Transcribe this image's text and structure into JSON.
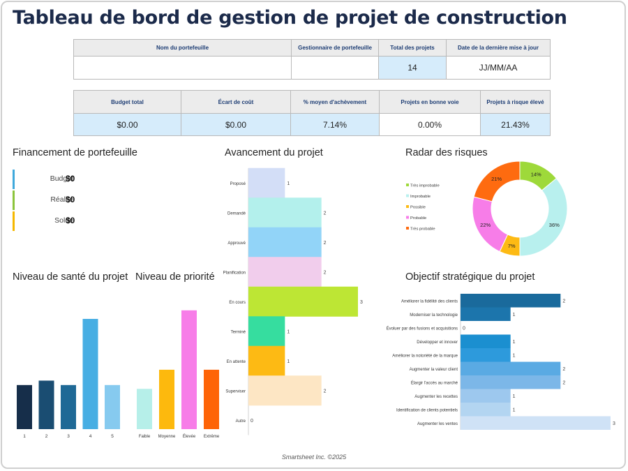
{
  "title": "Tableau de bord de gestion de projet de construction",
  "summary": {
    "headers": [
      "Nom du portefeuille",
      "Gestionnaire de portefeuille",
      "Total des projets",
      "Date de la dernière mise à jour"
    ],
    "values": [
      "",
      "",
      "14",
      "JJ/MM/AA"
    ]
  },
  "kpis": {
    "headers": [
      "Budget total",
      "Écart de coût",
      "% moyen d'achèvement",
      "Projets en bonne voie",
      "Projets à risque élevé"
    ],
    "values": [
      "$0.00",
      "$0.00",
      "7.14%",
      "0.00%",
      "21.43%"
    ]
  },
  "financing": {
    "title": "Financement de portefeuille",
    "items": [
      {
        "label": "Budget",
        "value": "$0",
        "color": "#3fa9dc"
      },
      {
        "label": "Réalité",
        "value": "$0",
        "color": "#8cc43c"
      },
      {
        "label": "Solde",
        "value": "$0",
        "color": "#f5b800"
      }
    ]
  },
  "footer": "Smartsheet Inc. ©2025",
  "chart_data": [
    {
      "id": "progress",
      "type": "bar",
      "orientation": "horizontal",
      "title": "Avancement du projet",
      "categories": [
        "Proposé",
        "Demandé",
        "Approuvé",
        "Planification",
        "En cours",
        "Terminé",
        "En attente",
        "Superviser",
        "Autre"
      ],
      "values": [
        1,
        2,
        2,
        2,
        3,
        1,
        1,
        2,
        0
      ],
      "colors": [
        "#d3def7",
        "#b3f0ec",
        "#92d4f8",
        "#f1cdec",
        "#bde634",
        "#36dd9f",
        "#fdba14",
        "#fde6c4",
        "#e5e5e5"
      ],
      "xlim": [
        0,
        3
      ]
    },
    {
      "id": "risk",
      "type": "pie",
      "title": "Radar des risques",
      "labels": [
        "Très improbable",
        "Improbable",
        "Possible",
        "Probable",
        "Très probable"
      ],
      "values": [
        14,
        36,
        7,
        22,
        21
      ],
      "colors": [
        "#9ed93a",
        "#b8f0ee",
        "#fdba14",
        "#f77de8",
        "#fe6b10"
      ],
      "legend": "left",
      "display": [
        "14%",
        "36%",
        "7%",
        "22%",
        "21%"
      ]
    },
    {
      "id": "health",
      "type": "bar",
      "title": "Niveau de santé du projet",
      "categories": [
        "1",
        "2",
        "3",
        "4",
        "5"
      ],
      "values": [
        2,
        2.2,
        2,
        5,
        2
      ],
      "colors": [
        "#162e4a",
        "#1a4d72",
        "#1f6996",
        "#47aee3",
        "#86caef"
      ]
    },
    {
      "id": "priority",
      "type": "bar",
      "title": "Niveau de priorité",
      "categories": [
        "Faible",
        "Moyenne",
        "Élevée",
        "Extrême"
      ],
      "values": [
        1.9,
        2.8,
        5.6,
        2.8
      ],
      "colors": [
        "#b6efe9",
        "#fdb90d",
        "#f77de8",
        "#fe6407"
      ]
    },
    {
      "id": "strategic",
      "type": "bar",
      "orientation": "horizontal",
      "title": "Objectif stratégique du projet",
      "categories": [
        "Améliorer la fidélité des clients",
        "Moderniser la technologie",
        "Évoluer par des fusions et acquisitions",
        "Développer et innover",
        "Améliorer la notoriété de la marque",
        "Augmenter la valeur client",
        "Élargir l'accès au marché",
        "Augmenter les recettes",
        "Identification de clients potentiels",
        "Augmenter les ventes"
      ],
      "values": [
        2,
        1,
        0,
        1,
        1,
        2,
        2,
        1,
        1,
        3
      ],
      "colors": [
        "#1a6a9c",
        "#1c75ac",
        "#1a84c3",
        "#1b8fd0",
        "#2d9adc",
        "#5aaae3",
        "#7cb7e8",
        "#9dc8ee",
        "#b3d5f1",
        "#cfe2f6"
      ],
      "xlim": [
        0,
        3
      ]
    }
  ]
}
